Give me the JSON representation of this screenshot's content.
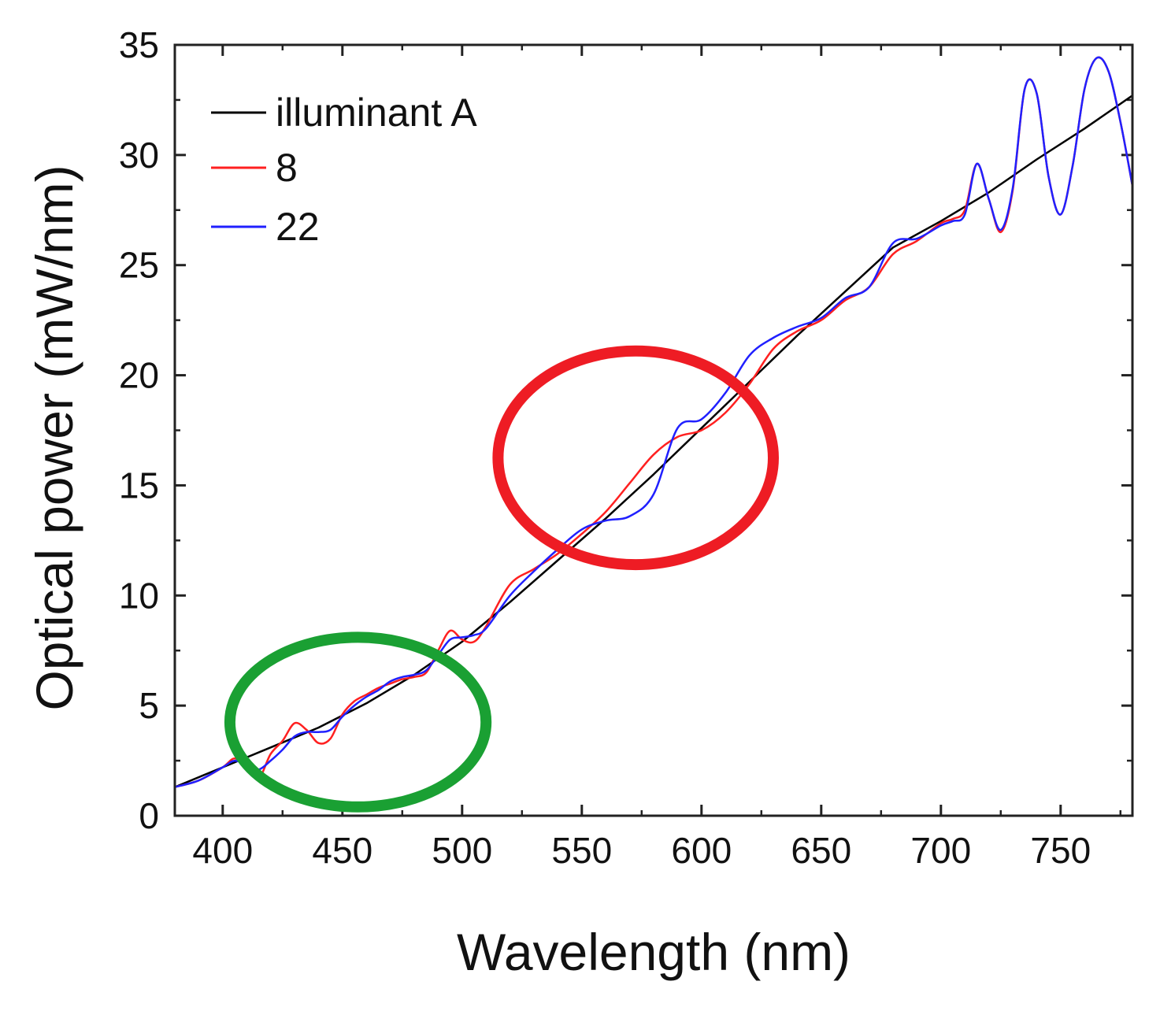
{
  "chart_data": {
    "type": "line",
    "xlabel": "Wavelength (nm)",
    "ylabel": "Optical power (mW/nm)",
    "xlim": [
      380,
      780
    ],
    "ylim": [
      0,
      35
    ],
    "x_ticks": [
      400,
      450,
      500,
      550,
      600,
      650,
      700,
      750
    ],
    "y_ticks": [
      0,
      5,
      10,
      15,
      20,
      25,
      30,
      35
    ],
    "legend_position": "top-left",
    "colors": {
      "illuminant": "#000000",
      "s8": "#ff2020",
      "s22": "#2020ff",
      "red_circle": "#ee1c24",
      "green_circle": "#1aa033"
    },
    "series": [
      {
        "name": "illuminant A",
        "color": "#000000",
        "x": [
          380,
          400,
          420,
          440,
          460,
          480,
          500,
          520,
          540,
          560,
          580,
          600,
          620,
          640,
          660,
          680,
          700,
          720,
          740,
          760,
          780
        ],
        "y": [
          1.3,
          2.2,
          3.1,
          4.0,
          5.1,
          6.4,
          7.9,
          9.7,
          11.6,
          13.5,
          15.5,
          17.6,
          19.7,
          21.8,
          23.8,
          25.8,
          27.0,
          28.3,
          29.8,
          31.2,
          32.7
        ]
      },
      {
        "name": "8",
        "color": "#ff2020",
        "x": [
          380,
          390,
          400,
          405,
          410,
          415,
          420,
          425,
          430,
          435,
          440,
          445,
          450,
          455,
          460,
          465,
          470,
          475,
          480,
          485,
          490,
          495,
          500,
          505,
          510,
          520,
          530,
          540,
          550,
          560,
          570,
          580,
          590,
          600,
          610,
          620,
          630,
          640,
          650,
          660,
          670,
          680,
          690,
          700,
          705,
          710,
          715,
          720,
          725,
          730,
          735,
          740,
          745,
          750,
          755,
          760,
          765,
          770,
          775,
          780
        ],
        "y": [
          1.3,
          1.6,
          2.2,
          2.6,
          2.2,
          1.7,
          2.8,
          3.4,
          4.2,
          3.9,
          3.3,
          3.5,
          4.6,
          5.2,
          5.5,
          5.8,
          6.0,
          6.2,
          6.3,
          6.5,
          7.5,
          8.4,
          8.0,
          7.9,
          8.6,
          10.5,
          11.2,
          11.9,
          12.8,
          13.8,
          15.1,
          16.4,
          17.2,
          17.5,
          18.3,
          19.6,
          21.2,
          22.0,
          22.5,
          23.4,
          24.0,
          25.5,
          26.1,
          26.9,
          27.1,
          27.5,
          29.6,
          28.0,
          26.5,
          28.4,
          33.0,
          32.8,
          29.0,
          27.3,
          29.5,
          33.0,
          34.4,
          33.8,
          31.5,
          28.6
        ]
      },
      {
        "name": "22",
        "color": "#2020ff",
        "x": [
          380,
          390,
          400,
          405,
          410,
          415,
          420,
          425,
          430,
          435,
          440,
          445,
          450,
          455,
          460,
          465,
          470,
          475,
          480,
          485,
          490,
          495,
          500,
          505,
          510,
          520,
          530,
          540,
          550,
          560,
          570,
          580,
          590,
          600,
          610,
          620,
          630,
          640,
          650,
          660,
          670,
          680,
          690,
          700,
          705,
          710,
          715,
          720,
          725,
          730,
          735,
          740,
          745,
          750,
          755,
          760,
          765,
          770,
          775,
          780
        ],
        "y": [
          1.3,
          1.6,
          2.2,
          2.5,
          2.3,
          2.1,
          2.5,
          3.0,
          3.6,
          3.8,
          3.8,
          3.9,
          4.5,
          5.0,
          5.4,
          5.7,
          6.1,
          6.3,
          6.4,
          6.6,
          7.3,
          8.0,
          8.1,
          8.2,
          8.5,
          10.0,
          11.1,
          12.1,
          13.0,
          13.4,
          13.6,
          14.6,
          17.6,
          18.0,
          19.2,
          20.9,
          21.7,
          22.2,
          22.6,
          23.5,
          24.0,
          26.0,
          26.2,
          26.8,
          27.0,
          27.3,
          29.6,
          28.0,
          26.6,
          28.5,
          33.0,
          32.8,
          29.0,
          27.3,
          29.5,
          33.0,
          34.4,
          33.8,
          31.5,
          28.6
        ]
      }
    ],
    "annotations": [
      {
        "shape": "ellipse",
        "color": "red",
        "x_range": [
          515,
          630
        ],
        "y_range": [
          11.4,
          21.1
        ]
      },
      {
        "shape": "ellipse",
        "color": "green",
        "x_range": [
          403,
          510
        ],
        "y_range": [
          0.4,
          8.1
        ]
      }
    ]
  }
}
